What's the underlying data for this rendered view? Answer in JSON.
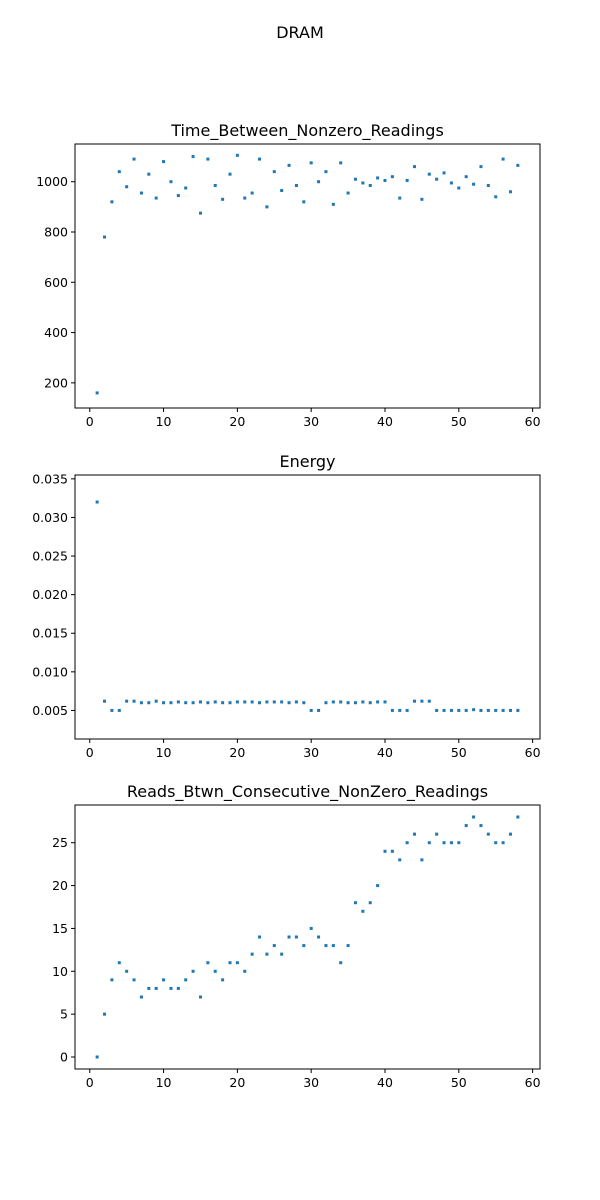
{
  "figure": {
    "suptitle": "DRAM"
  },
  "chart_data": [
    {
      "type": "scatter",
      "title": "Time_Between_Nonzero_Readings",
      "xlabel": "",
      "ylabel": "",
      "xlim": [
        -2,
        61
      ],
      "ylim": [
        100,
        1150
      ],
      "xticks": [
        0,
        10,
        20,
        30,
        40,
        50,
        60
      ],
      "yticks": [
        200,
        400,
        600,
        800,
        1000
      ],
      "color": "#1f77b4",
      "grid": false,
      "x": [
        1,
        2,
        3,
        4,
        5,
        6,
        7,
        8,
        9,
        10,
        11,
        12,
        13,
        14,
        15,
        16,
        17,
        18,
        19,
        20,
        21,
        22,
        23,
        24,
        25,
        26,
        27,
        28,
        29,
        30,
        31,
        32,
        33,
        34,
        35,
        36,
        37,
        38,
        39,
        40,
        41,
        42,
        43,
        44,
        45,
        46,
        47,
        48,
        49,
        50,
        51,
        52,
        53,
        54,
        55,
        56,
        57,
        58
      ],
      "y": [
        160,
        780,
        920,
        1040,
        980,
        1090,
        955,
        1030,
        935,
        1080,
        1000,
        945,
        975,
        1100,
        875,
        1090,
        985,
        930,
        1030,
        1105,
        935,
        955,
        1090,
        900,
        1040,
        965,
        1065,
        985,
        920,
        1075,
        1000,
        1040,
        910,
        1075,
        955,
        1010,
        995,
        985,
        1015,
        1005,
        1020,
        935,
        1005,
        1060,
        930,
        1030,
        1010,
        1035,
        995,
        975,
        1020,
        990,
        1060,
        985,
        940,
        1090,
        960,
        1065
      ]
    },
    {
      "type": "scatter",
      "title": "Energy",
      "xlabel": "",
      "ylabel": "",
      "xlim": [
        -2,
        61
      ],
      "ylim": [
        0.0013,
        0.0355
      ],
      "xticks": [
        0,
        10,
        20,
        30,
        40,
        50,
        60
      ],
      "yticks": [
        0.005,
        0.01,
        0.015,
        0.02,
        0.025,
        0.03,
        0.035
      ],
      "ytick_labels": [
        "0.005",
        "0.010",
        "0.015",
        "0.020",
        "0.025",
        "0.030",
        "0.035"
      ],
      "color": "#1f77b4",
      "grid": false,
      "x": [
        1,
        2,
        3,
        4,
        5,
        6,
        7,
        8,
        9,
        10,
        11,
        12,
        13,
        14,
        15,
        16,
        17,
        18,
        19,
        20,
        21,
        22,
        23,
        24,
        25,
        26,
        27,
        28,
        29,
        30,
        31,
        32,
        33,
        34,
        35,
        36,
        37,
        38,
        39,
        40,
        41,
        42,
        43,
        44,
        45,
        46,
        47,
        48,
        49,
        50,
        51,
        52,
        53,
        54,
        55,
        56,
        57,
        58
      ],
      "y": [
        0.032,
        0.0062,
        0.005,
        0.005,
        0.0062,
        0.0062,
        0.006,
        0.006,
        0.0062,
        0.006,
        0.006,
        0.0061,
        0.006,
        0.006,
        0.0061,
        0.006,
        0.0061,
        0.006,
        0.006,
        0.0061,
        0.0061,
        0.0061,
        0.006,
        0.0061,
        0.0061,
        0.0061,
        0.006,
        0.0061,
        0.006,
        0.005,
        0.005,
        0.006,
        0.0061,
        0.0061,
        0.006,
        0.006,
        0.0061,
        0.006,
        0.0061,
        0.0061,
        0.005,
        0.005,
        0.005,
        0.0062,
        0.0062,
        0.0062,
        0.005,
        0.005,
        0.005,
        0.005,
        0.005,
        0.0051,
        0.005,
        0.005,
        0.005,
        0.005,
        0.005,
        0.005
      ]
    },
    {
      "type": "scatter",
      "title": "Reads_Btwn_Consecutive_NonZero_Readings",
      "xlabel": "",
      "ylabel": "",
      "xlim": [
        -2,
        61
      ],
      "ylim": [
        -1.4,
        29.4
      ],
      "xticks": [
        0,
        10,
        20,
        30,
        40,
        50,
        60
      ],
      "yticks": [
        0,
        5,
        10,
        15,
        20,
        25
      ],
      "color": "#1f77b4",
      "grid": false,
      "x": [
        1,
        2,
        3,
        4,
        5,
        6,
        7,
        8,
        9,
        10,
        11,
        12,
        13,
        14,
        15,
        16,
        17,
        18,
        19,
        20,
        21,
        22,
        23,
        24,
        25,
        26,
        27,
        28,
        29,
        30,
        31,
        32,
        33,
        34,
        35,
        36,
        37,
        38,
        39,
        40,
        41,
        42,
        43,
        44,
        45,
        46,
        47,
        48,
        49,
        50,
        51,
        52,
        53,
        54,
        55,
        56,
        57,
        58
      ],
      "y": [
        0,
        5,
        9,
        11,
        10,
        9,
        7,
        8,
        8,
        9,
        8,
        8,
        9,
        10,
        7,
        11,
        10,
        9,
        11,
        11,
        10,
        12,
        14,
        12,
        13,
        12,
        14,
        14,
        13,
        15,
        14,
        13,
        13,
        11,
        13,
        18,
        17,
        18,
        20,
        24,
        24,
        23,
        25,
        26,
        23,
        25,
        26,
        25,
        25,
        25,
        27,
        28,
        27,
        26,
        25,
        25,
        26,
        28
      ]
    }
  ]
}
